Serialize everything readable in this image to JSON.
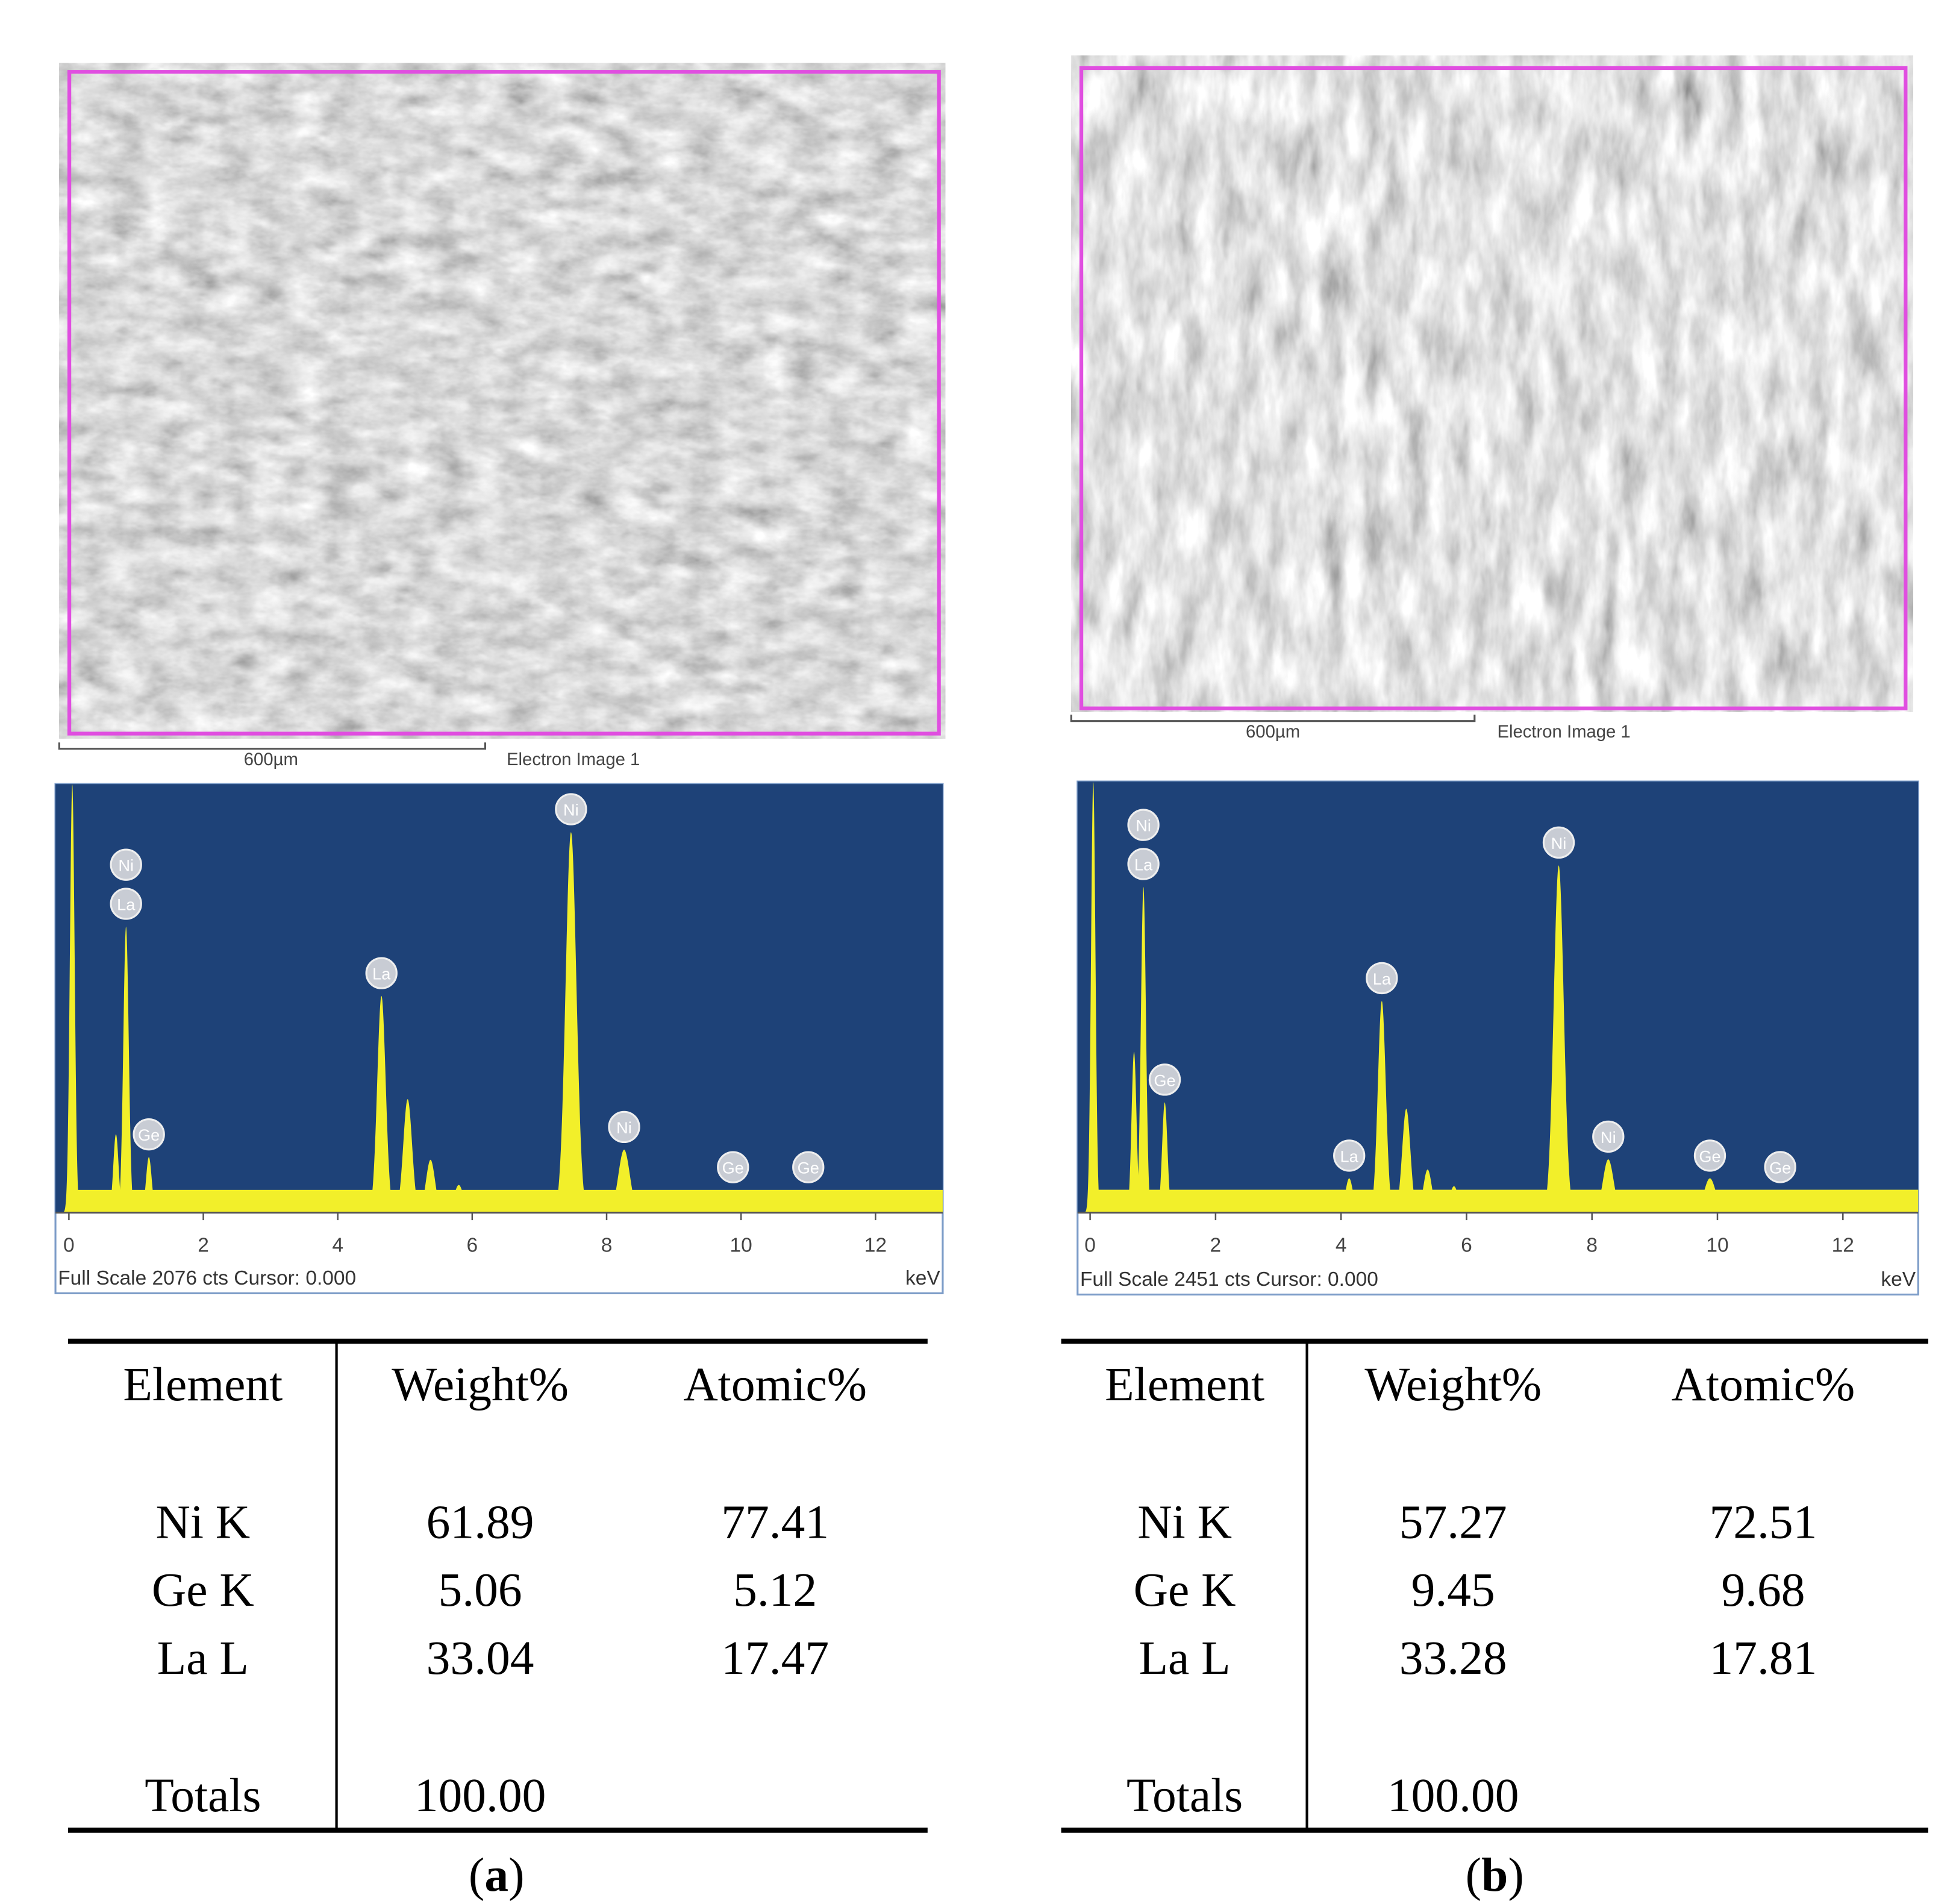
{
  "panels": [
    {
      "image": {
        "scale_bar": "600µm",
        "caption": "Electron Image 1"
      },
      "spectrum": {
        "type": "spectrum",
        "xlim": [
          -0.2,
          13.0
        ],
        "xticks": [
          0,
          2,
          4,
          6,
          8,
          10,
          12
        ],
        "ylim": [
          0,
          2076
        ],
        "full_scale": "Full Scale 2076 cts Cursor: 0.000",
        "x_unit": "keV",
        "background": 110,
        "peaks": [
          {
            "energy": 0.05,
            "counts": 2076
          },
          {
            "energy": 0.7,
            "counts": 380
          },
          {
            "energy": 0.85,
            "counts": 1386
          },
          {
            "energy": 1.19,
            "counts": 269
          },
          {
            "energy": 4.65,
            "counts": 1050
          },
          {
            "energy": 5.04,
            "counts": 550
          },
          {
            "energy": 5.38,
            "counts": 256
          },
          {
            "energy": 5.8,
            "counts": 134
          },
          {
            "energy": 7.47,
            "counts": 1844
          },
          {
            "energy": 8.26,
            "counts": 305
          },
          {
            "energy": 9.88,
            "counts": 73
          },
          {
            "energy": 11.0,
            "counts": 43
          }
        ],
        "peak_labels": [
          {
            "text": "Ni",
            "energy": 0.85
          },
          {
            "text": "La",
            "energy": 0.85
          },
          {
            "text": "Ge",
            "energy": 1.19
          },
          {
            "text": "La",
            "energy": 4.65
          },
          {
            "text": "Ni",
            "energy": 7.47
          },
          {
            "text": "Ni",
            "energy": 8.26
          },
          {
            "text": "Ge",
            "energy": 9.88
          },
          {
            "text": "Ge",
            "energy": 11.0
          }
        ]
      },
      "table": {
        "header": [
          "Element",
          "Weight%",
          "Atomic%"
        ],
        "rows": [
          [
            "Ni K",
            "61.89",
            "77.41"
          ],
          [
            "Ge K",
            "5.06",
            "5.12"
          ],
          [
            "La L",
            "33.04",
            "17.47"
          ]
        ],
        "totals": [
          "Totals",
          "100.00"
        ]
      },
      "caption": [
        "(",
        "a",
        ")"
      ]
    },
    {
      "image": {
        "scale_bar": "600µm",
        "caption": "Electron Image 1"
      },
      "spectrum": {
        "type": "spectrum",
        "xlim": [
          -0.2,
          13.2
        ],
        "xticks": [
          0,
          2,
          4,
          6,
          8,
          10,
          12
        ],
        "ylim": [
          0,
          2451
        ],
        "full_scale": "Full Scale 2451 cts Cursor: 0.000",
        "x_unit": "keV",
        "background": 130,
        "peaks": [
          {
            "energy": 0.05,
            "counts": 2451
          },
          {
            "energy": 0.7,
            "counts": 915
          },
          {
            "energy": 0.85,
            "counts": 1853
          },
          {
            "energy": 1.19,
            "counts": 627
          },
          {
            "energy": 4.13,
            "counts": 195
          },
          {
            "energy": 4.65,
            "counts": 1204
          },
          {
            "energy": 5.04,
            "counts": 591
          },
          {
            "energy": 5.38,
            "counts": 245
          },
          {
            "energy": 5.8,
            "counts": 150
          },
          {
            "energy": 7.47,
            "counts": 1975
          },
          {
            "energy": 8.26,
            "counts": 303
          },
          {
            "energy": 9.88,
            "counts": 195
          },
          {
            "energy": 11.0,
            "counts": 123
          }
        ],
        "peak_labels": [
          {
            "text": "Ni",
            "energy": 0.85
          },
          {
            "text": "La",
            "energy": 0.85
          },
          {
            "text": "Ge",
            "energy": 1.19
          },
          {
            "text": "La",
            "energy": 4.13
          },
          {
            "text": "La",
            "energy": 4.65
          },
          {
            "text": "Ni",
            "energy": 7.47
          },
          {
            "text": "Ni",
            "energy": 8.26
          },
          {
            "text": "Ge",
            "energy": 9.88
          },
          {
            "text": "Ge",
            "energy": 11.0
          }
        ]
      },
      "table": {
        "header": [
          "Element",
          "Weight%",
          "Atomic%"
        ],
        "rows": [
          [
            "Ni K",
            "57.27",
            "72.51"
          ],
          [
            "Ge K",
            "9.45",
            "9.68"
          ],
          [
            "La L",
            "33.28",
            "17.81"
          ]
        ],
        "totals": [
          "Totals",
          "100.00"
        ]
      },
      "caption": [
        "(",
        "b",
        ")"
      ]
    }
  ]
}
